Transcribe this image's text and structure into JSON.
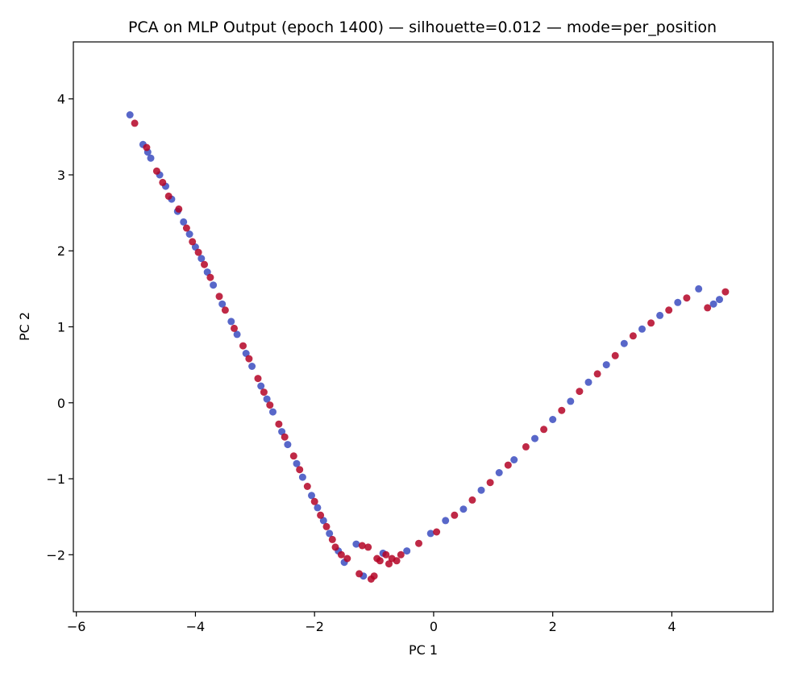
{
  "chart_data": {
    "type": "scatter",
    "title": "PCA on MLP Output (epoch 1400) — silhouette=0.012 — mode=per_position",
    "xlabel": "PC 1",
    "ylabel": "PC 2",
    "xlim": [
      -6.05,
      5.7
    ],
    "ylim": [
      -2.75,
      4.75
    ],
    "xticks": [
      -6,
      -4,
      -2,
      0,
      2,
      4
    ],
    "yticks": [
      -2,
      -1,
      0,
      1,
      2,
      3,
      4
    ],
    "xtick_labels": [
      "−6",
      "−4",
      "−2",
      "0",
      "2",
      "4"
    ],
    "ytick_labels": [
      "−2",
      "−1",
      "0",
      "1",
      "2",
      "3",
      "4"
    ],
    "grid": false,
    "colors": {
      "blue": "#3b4cc0",
      "red": "#b40426"
    },
    "series": [
      {
        "color": "blue",
        "points": [
          [
            -5.1,
            3.79
          ],
          [
            -4.88,
            3.4
          ],
          [
            -4.8,
            3.3
          ],
          [
            -4.75,
            3.22
          ],
          [
            -4.6,
            3.0
          ],
          [
            -4.5,
            2.85
          ],
          [
            -4.4,
            2.68
          ],
          [
            -4.3,
            2.52
          ],
          [
            -4.2,
            2.38
          ],
          [
            -4.1,
            2.22
          ],
          [
            -4.0,
            2.05
          ],
          [
            -3.9,
            1.9
          ],
          [
            -3.8,
            1.72
          ],
          [
            -3.7,
            1.55
          ],
          [
            -3.55,
            1.3
          ],
          [
            -3.4,
            1.07
          ],
          [
            -3.3,
            0.9
          ],
          [
            -3.15,
            0.65
          ],
          [
            -3.05,
            0.48
          ],
          [
            -2.9,
            0.22
          ],
          [
            -2.8,
            0.05
          ],
          [
            -2.7,
            -0.12
          ],
          [
            -2.55,
            -0.38
          ],
          [
            -2.45,
            -0.55
          ],
          [
            -2.3,
            -0.8
          ],
          [
            -2.2,
            -0.98
          ],
          [
            -2.05,
            -1.22
          ],
          [
            -1.95,
            -1.38
          ],
          [
            -1.85,
            -1.55
          ],
          [
            -1.75,
            -1.72
          ],
          [
            -1.6,
            -1.95
          ],
          [
            -1.3,
            -1.86
          ],
          [
            -1.5,
            -2.1
          ],
          [
            -1.18,
            -2.28
          ],
          [
            -0.85,
            -1.98
          ],
          [
            -0.45,
            -1.95
          ],
          [
            -0.05,
            -1.72
          ],
          [
            0.2,
            -1.55
          ],
          [
            0.5,
            -1.4
          ],
          [
            0.8,
            -1.15
          ],
          [
            1.1,
            -0.92
          ],
          [
            1.35,
            -0.75
          ],
          [
            1.7,
            -0.47
          ],
          [
            2.0,
            -0.22
          ],
          [
            2.3,
            0.02
          ],
          [
            2.6,
            0.27
          ],
          [
            2.9,
            0.5
          ],
          [
            3.2,
            0.78
          ],
          [
            3.5,
            0.97
          ],
          [
            3.8,
            1.15
          ],
          [
            4.1,
            1.32
          ],
          [
            4.45,
            1.5
          ],
          [
            4.7,
            1.3
          ],
          [
            4.8,
            1.36
          ]
        ]
      },
      {
        "color": "red",
        "points": [
          [
            -5.02,
            3.68
          ],
          [
            -4.82,
            3.36
          ],
          [
            -4.65,
            3.05
          ],
          [
            -4.55,
            2.9
          ],
          [
            -4.45,
            2.72
          ],
          [
            -4.28,
            2.55
          ],
          [
            -4.15,
            2.3
          ],
          [
            -4.05,
            2.12
          ],
          [
            -3.95,
            1.98
          ],
          [
            -3.85,
            1.82
          ],
          [
            -3.75,
            1.65
          ],
          [
            -3.6,
            1.4
          ],
          [
            -3.5,
            1.22
          ],
          [
            -3.35,
            0.98
          ],
          [
            -3.2,
            0.75
          ],
          [
            -3.1,
            0.58
          ],
          [
            -2.95,
            0.32
          ],
          [
            -2.85,
            0.14
          ],
          [
            -2.75,
            -0.03
          ],
          [
            -2.6,
            -0.28
          ],
          [
            -2.5,
            -0.45
          ],
          [
            -2.35,
            -0.7
          ],
          [
            -2.25,
            -0.88
          ],
          [
            -2.12,
            -1.1
          ],
          [
            -2.0,
            -1.3
          ],
          [
            -1.9,
            -1.48
          ],
          [
            -1.8,
            -1.63
          ],
          [
            -1.7,
            -1.8
          ],
          [
            -1.65,
            -1.9
          ],
          [
            -1.55,
            -2.0
          ],
          [
            -1.45,
            -2.05
          ],
          [
            -1.25,
            -2.25
          ],
          [
            -1.2,
            -1.88
          ],
          [
            -1.1,
            -1.9
          ],
          [
            -1.05,
            -2.32
          ],
          [
            -1.0,
            -2.28
          ],
          [
            -0.95,
            -2.05
          ],
          [
            -0.9,
            -2.08
          ],
          [
            -0.8,
            -2.0
          ],
          [
            -0.7,
            -2.05
          ],
          [
            -0.75,
            -2.12
          ],
          [
            -0.62,
            -2.08
          ],
          [
            -0.55,
            -2.0
          ],
          [
            -0.25,
            -1.85
          ],
          [
            0.05,
            -1.7
          ],
          [
            0.35,
            -1.48
          ],
          [
            0.65,
            -1.28
          ],
          [
            0.95,
            -1.05
          ],
          [
            1.25,
            -0.82
          ],
          [
            1.55,
            -0.58
          ],
          [
            1.85,
            -0.35
          ],
          [
            2.15,
            -0.1
          ],
          [
            2.45,
            0.15
          ],
          [
            2.75,
            0.38
          ],
          [
            3.05,
            0.62
          ],
          [
            3.35,
            0.88
          ],
          [
            3.65,
            1.05
          ],
          [
            3.95,
            1.22
          ],
          [
            4.25,
            1.38
          ],
          [
            4.6,
            1.25
          ],
          [
            4.9,
            1.46
          ]
        ]
      }
    ]
  }
}
